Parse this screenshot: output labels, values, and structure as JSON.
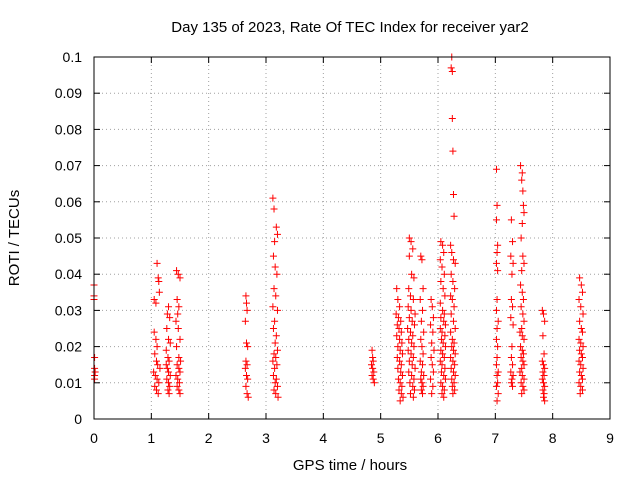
{
  "chart_data": {
    "type": "scatter",
    "title": "Day 135 of 2023, Rate Of TEC Index for receiver yar2",
    "xlabel": "GPS time / hours",
    "ylabel": "ROTI / TECUs",
    "xlim": [
      0,
      9
    ],
    "ylim": [
      0,
      0.1
    ],
    "x_ticks": [
      "0",
      "1",
      "2",
      "3",
      "4",
      "5",
      "6",
      "7",
      "8",
      "9"
    ],
    "y_ticks": [
      "0",
      "0.01",
      "0.02",
      "0.03",
      "0.04",
      "0.05",
      "0.06",
      "0.07",
      "0.08",
      "0.09",
      "0.1"
    ],
    "grid": true,
    "marker": "+",
    "color": "#ff0000",
    "points": [
      [
        0.0,
        0.037
      ],
      [
        0.0,
        0.033
      ],
      [
        0.0,
        0.034
      ],
      [
        0.01,
        0.017
      ],
      [
        0.01,
        0.014
      ],
      [
        0.01,
        0.012
      ],
      [
        0.01,
        0.011
      ],
      [
        0.02,
        0.013
      ],
      [
        1.05,
        0.033
      ],
      [
        1.08,
        0.032
      ],
      [
        1.1,
        0.043
      ],
      [
        1.12,
        0.039
      ],
      [
        1.13,
        0.038
      ],
      [
        1.14,
        0.035
      ],
      [
        1.05,
        0.024
      ],
      [
        1.08,
        0.022
      ],
      [
        1.1,
        0.02
      ],
      [
        1.06,
        0.018
      ],
      [
        1.09,
        0.016
      ],
      [
        1.11,
        0.015
      ],
      [
        1.04,
        0.013
      ],
      [
        1.07,
        0.012
      ],
      [
        1.1,
        0.011
      ],
      [
        1.13,
        0.01
      ],
      [
        1.06,
        0.009
      ],
      [
        1.09,
        0.008
      ],
      [
        1.12,
        0.007
      ],
      [
        1.15,
        0.014
      ],
      [
        1.28,
        0.029
      ],
      [
        1.3,
        0.031
      ],
      [
        1.32,
        0.028
      ],
      [
        1.27,
        0.025
      ],
      [
        1.3,
        0.022
      ],
      [
        1.33,
        0.021
      ],
      [
        1.26,
        0.019
      ],
      [
        1.29,
        0.017
      ],
      [
        1.31,
        0.016
      ],
      [
        1.28,
        0.014
      ],
      [
        1.3,
        0.013
      ],
      [
        1.33,
        0.012
      ],
      [
        1.27,
        0.011
      ],
      [
        1.3,
        0.01
      ],
      [
        1.32,
        0.009
      ],
      [
        1.29,
        0.008
      ],
      [
        1.31,
        0.007
      ],
      [
        1.26,
        0.015
      ],
      [
        1.44,
        0.041
      ],
      [
        1.47,
        0.04
      ],
      [
        1.5,
        0.039
      ],
      [
        1.45,
        0.033
      ],
      [
        1.48,
        0.031
      ],
      [
        1.46,
        0.029
      ],
      [
        1.43,
        0.027
      ],
      [
        1.47,
        0.025
      ],
      [
        1.5,
        0.022
      ],
      [
        1.44,
        0.02
      ],
      [
        1.48,
        0.017
      ],
      [
        1.51,
        0.016
      ],
      [
        1.45,
        0.015
      ],
      [
        1.48,
        0.014
      ],
      [
        1.5,
        0.013
      ],
      [
        1.43,
        0.012
      ],
      [
        1.46,
        0.011
      ],
      [
        1.49,
        0.01
      ],
      [
        1.45,
        0.009
      ],
      [
        1.48,
        0.008
      ],
      [
        1.5,
        0.007
      ],
      [
        2.65,
        0.034
      ],
      [
        2.66,
        0.032
      ],
      [
        2.67,
        0.03
      ],
      [
        2.64,
        0.027
      ],
      [
        2.66,
        0.021
      ],
      [
        2.68,
        0.02
      ],
      [
        2.65,
        0.016
      ],
      [
        2.67,
        0.015
      ],
      [
        2.64,
        0.014
      ],
      [
        2.66,
        0.012
      ],
      [
        2.68,
        0.011
      ],
      [
        2.65,
        0.009
      ],
      [
        2.67,
        0.007
      ],
      [
        2.69,
        0.006
      ],
      [
        3.12,
        0.061
      ],
      [
        3.14,
        0.058
      ],
      [
        3.18,
        0.053
      ],
      [
        3.2,
        0.051
      ],
      [
        3.15,
        0.049
      ],
      [
        3.13,
        0.045
      ],
      [
        3.16,
        0.042
      ],
      [
        3.19,
        0.04
      ],
      [
        3.14,
        0.036
      ],
      [
        3.17,
        0.034
      ],
      [
        3.12,
        0.031
      ],
      [
        3.2,
        0.03
      ],
      [
        3.15,
        0.027
      ],
      [
        3.13,
        0.025
      ],
      [
        3.18,
        0.023
      ],
      [
        3.16,
        0.021
      ],
      [
        3.2,
        0.019
      ],
      [
        3.14,
        0.018
      ],
      [
        3.17,
        0.017
      ],
      [
        3.12,
        0.016
      ],
      [
        3.19,
        0.015
      ],
      [
        3.15,
        0.014
      ],
      [
        3.13,
        0.012
      ],
      [
        3.18,
        0.011
      ],
      [
        3.16,
        0.01
      ],
      [
        3.2,
        0.009
      ],
      [
        3.14,
        0.008
      ],
      [
        3.17,
        0.007
      ],
      [
        3.21,
        0.006
      ],
      [
        4.85,
        0.019
      ],
      [
        4.86,
        0.017
      ],
      [
        4.87,
        0.016
      ],
      [
        4.84,
        0.015
      ],
      [
        4.86,
        0.014
      ],
      [
        4.88,
        0.013
      ],
      [
        4.85,
        0.012
      ],
      [
        4.87,
        0.011
      ],
      [
        4.89,
        0.01
      ],
      [
        5.28,
        0.036
      ],
      [
        5.3,
        0.033
      ],
      [
        5.33,
        0.031
      ],
      [
        5.27,
        0.029
      ],
      [
        5.31,
        0.028
      ],
      [
        5.35,
        0.027
      ],
      [
        5.29,
        0.026
      ],
      [
        5.32,
        0.025
      ],
      [
        5.36,
        0.024
      ],
      [
        5.28,
        0.023
      ],
      [
        5.33,
        0.022
      ],
      [
        5.37,
        0.021
      ],
      [
        5.3,
        0.02
      ],
      [
        5.34,
        0.019
      ],
      [
        5.38,
        0.018
      ],
      [
        5.29,
        0.017
      ],
      [
        5.33,
        0.016
      ],
      [
        5.36,
        0.015
      ],
      [
        5.3,
        0.014
      ],
      [
        5.35,
        0.013
      ],
      [
        5.38,
        0.012
      ],
      [
        5.31,
        0.011
      ],
      [
        5.34,
        0.01
      ],
      [
        5.37,
        0.009
      ],
      [
        5.32,
        0.008
      ],
      [
        5.36,
        0.007
      ],
      [
        5.39,
        0.006
      ],
      [
        5.34,
        0.005
      ],
      [
        5.5,
        0.05
      ],
      [
        5.53,
        0.049
      ],
      [
        5.56,
        0.047
      ],
      [
        5.5,
        0.045
      ],
      [
        5.54,
        0.04
      ],
      [
        5.58,
        0.039
      ],
      [
        5.49,
        0.036
      ],
      [
        5.52,
        0.034
      ],
      [
        5.57,
        0.033
      ],
      [
        5.48,
        0.031
      ],
      [
        5.53,
        0.03
      ],
      [
        5.6,
        0.029
      ],
      [
        5.5,
        0.028
      ],
      [
        5.55,
        0.027
      ],
      [
        5.59,
        0.026
      ],
      [
        5.47,
        0.025
      ],
      [
        5.52,
        0.024
      ],
      [
        5.56,
        0.023
      ],
      [
        5.49,
        0.022
      ],
      [
        5.54,
        0.021
      ],
      [
        5.58,
        0.02
      ],
      [
        5.48,
        0.019
      ],
      [
        5.53,
        0.018
      ],
      [
        5.57,
        0.017
      ],
      [
        5.5,
        0.016
      ],
      [
        5.55,
        0.015
      ],
      [
        5.6,
        0.014
      ],
      [
        5.49,
        0.013
      ],
      [
        5.54,
        0.012
      ],
      [
        5.58,
        0.011
      ],
      [
        5.51,
        0.01
      ],
      [
        5.56,
        0.009
      ],
      [
        5.59,
        0.008
      ],
      [
        5.52,
        0.007
      ],
      [
        5.57,
        0.006
      ],
      [
        5.7,
        0.045
      ],
      [
        5.72,
        0.044
      ],
      [
        5.74,
        0.036
      ],
      [
        5.69,
        0.033
      ],
      [
        5.73,
        0.03
      ],
      [
        5.71,
        0.027
      ],
      [
        5.75,
        0.024
      ],
      [
        5.7,
        0.022
      ],
      [
        5.72,
        0.02
      ],
      [
        5.74,
        0.018
      ],
      [
        5.69,
        0.016
      ],
      [
        5.73,
        0.015
      ],
      [
        5.71,
        0.013
      ],
      [
        5.75,
        0.012
      ],
      [
        5.7,
        0.011
      ],
      [
        5.72,
        0.01
      ],
      [
        5.74,
        0.009
      ],
      [
        5.71,
        0.008
      ],
      [
        5.73,
        0.007
      ],
      [
        5.88,
        0.033
      ],
      [
        5.9,
        0.031
      ],
      [
        5.92,
        0.028
      ],
      [
        5.87,
        0.026
      ],
      [
        5.91,
        0.024
      ],
      [
        5.89,
        0.021
      ],
      [
        5.93,
        0.019
      ],
      [
        5.88,
        0.017
      ],
      [
        5.9,
        0.015
      ],
      [
        5.92,
        0.013
      ],
      [
        5.87,
        0.011
      ],
      [
        5.91,
        0.009
      ],
      [
        5.89,
        0.007
      ],
      [
        6.05,
        0.049
      ],
      [
        6.08,
        0.048
      ],
      [
        6.1,
        0.046
      ],
      [
        6.04,
        0.044
      ],
      [
        6.07,
        0.042
      ],
      [
        6.11,
        0.04
      ],
      [
        6.05,
        0.038
      ],
      [
        6.09,
        0.036
      ],
      [
        6.12,
        0.034
      ],
      [
        6.04,
        0.032
      ],
      [
        6.08,
        0.03
      ],
      [
        6.11,
        0.029
      ],
      [
        6.05,
        0.028
      ],
      [
        6.1,
        0.027
      ],
      [
        6.13,
        0.026
      ],
      [
        6.04,
        0.025
      ],
      [
        6.07,
        0.024
      ],
      [
        6.12,
        0.023
      ],
      [
        6.06,
        0.022
      ],
      [
        6.09,
        0.021
      ],
      [
        6.13,
        0.02
      ],
      [
        6.05,
        0.019
      ],
      [
        6.08,
        0.018
      ],
      [
        6.11,
        0.017
      ],
      [
        6.04,
        0.016
      ],
      [
        6.07,
        0.015
      ],
      [
        6.12,
        0.014
      ],
      [
        6.06,
        0.013
      ],
      [
        6.1,
        0.012
      ],
      [
        6.13,
        0.011
      ],
      [
        6.05,
        0.01
      ],
      [
        6.08,
        0.009
      ],
      [
        6.11,
        0.008
      ],
      [
        6.07,
        0.007
      ],
      [
        6.1,
        0.006
      ],
      [
        6.24,
        0.1
      ],
      [
        6.23,
        0.097
      ],
      [
        6.25,
        0.096
      ],
      [
        6.25,
        0.083
      ],
      [
        6.26,
        0.074
      ],
      [
        6.27,
        0.062
      ],
      [
        6.28,
        0.056
      ],
      [
        6.22,
        0.048
      ],
      [
        6.24,
        0.046
      ],
      [
        6.27,
        0.044
      ],
      [
        6.3,
        0.043
      ],
      [
        6.23,
        0.04
      ],
      [
        6.26,
        0.038
      ],
      [
        6.29,
        0.036
      ],
      [
        6.22,
        0.034
      ],
      [
        6.25,
        0.033
      ],
      [
        6.28,
        0.031
      ],
      [
        6.23,
        0.029
      ],
      [
        6.27,
        0.027
      ],
      [
        6.3,
        0.025
      ],
      [
        6.22,
        0.024
      ],
      [
        6.25,
        0.022
      ],
      [
        6.28,
        0.021
      ],
      [
        6.24,
        0.02
      ],
      [
        6.27,
        0.019
      ],
      [
        6.3,
        0.018
      ],
      [
        6.22,
        0.017
      ],
      [
        6.26,
        0.016
      ],
      [
        6.29,
        0.015
      ],
      [
        6.23,
        0.014
      ],
      [
        6.27,
        0.013
      ],
      [
        6.3,
        0.012
      ],
      [
        6.24,
        0.011
      ],
      [
        6.28,
        0.01
      ],
      [
        6.25,
        0.009
      ],
      [
        6.29,
        0.008
      ],
      [
        6.26,
        0.007
      ],
      [
        7.02,
        0.069
      ],
      [
        7.03,
        0.059
      ],
      [
        7.02,
        0.055
      ],
      [
        7.04,
        0.048
      ],
      [
        7.03,
        0.046
      ],
      [
        7.02,
        0.043
      ],
      [
        7.04,
        0.041
      ],
      [
        7.03,
        0.033
      ],
      [
        7.02,
        0.03
      ],
      [
        7.05,
        0.027
      ],
      [
        7.03,
        0.025
      ],
      [
        7.02,
        0.022
      ],
      [
        7.04,
        0.02
      ],
      [
        7.03,
        0.017
      ],
      [
        7.02,
        0.015
      ],
      [
        7.05,
        0.013
      ],
      [
        7.03,
        0.012
      ],
      [
        7.04,
        0.01
      ],
      [
        7.02,
        0.009
      ],
      [
        7.05,
        0.007
      ],
      [
        7.03,
        0.005
      ],
      [
        7.28,
        0.055
      ],
      [
        7.3,
        0.049
      ],
      [
        7.27,
        0.045
      ],
      [
        7.31,
        0.043
      ],
      [
        7.29,
        0.04
      ],
      [
        7.28,
        0.033
      ],
      [
        7.3,
        0.031
      ],
      [
        7.27,
        0.028
      ],
      [
        7.31,
        0.026
      ],
      [
        7.29,
        0.02
      ],
      [
        7.28,
        0.017
      ],
      [
        7.3,
        0.015
      ],
      [
        7.27,
        0.013
      ],
      [
        7.31,
        0.012
      ],
      [
        7.29,
        0.011
      ],
      [
        7.28,
        0.01
      ],
      [
        7.3,
        0.009
      ],
      [
        7.44,
        0.07
      ],
      [
        7.47,
        0.068
      ],
      [
        7.46,
        0.066
      ],
      [
        7.48,
        0.063
      ],
      [
        7.49,
        0.059
      ],
      [
        7.5,
        0.057
      ],
      [
        7.47,
        0.054
      ],
      [
        7.45,
        0.05
      ],
      [
        7.48,
        0.045
      ],
      [
        7.5,
        0.043
      ],
      [
        7.46,
        0.041
      ],
      [
        7.44,
        0.037
      ],
      [
        7.47,
        0.035
      ],
      [
        7.49,
        0.033
      ],
      [
        7.45,
        0.031
      ],
      [
        7.48,
        0.029
      ],
      [
        7.5,
        0.027
      ],
      [
        7.46,
        0.025
      ],
      [
        7.43,
        0.024
      ],
      [
        7.47,
        0.023
      ],
      [
        7.5,
        0.022
      ],
      [
        7.44,
        0.02
      ],
      [
        7.47,
        0.019
      ],
      [
        7.49,
        0.018
      ],
      [
        7.45,
        0.017
      ],
      [
        7.48,
        0.016
      ],
      [
        7.5,
        0.015
      ],
      [
        7.46,
        0.014
      ],
      [
        7.43,
        0.013
      ],
      [
        7.47,
        0.012
      ],
      [
        7.5,
        0.011
      ],
      [
        7.45,
        0.01
      ],
      [
        7.48,
        0.009
      ],
      [
        7.5,
        0.008
      ],
      [
        7.46,
        0.007
      ],
      [
        7.82,
        0.03
      ],
      [
        7.84,
        0.029
      ],
      [
        7.86,
        0.027
      ],
      [
        7.83,
        0.023
      ],
      [
        7.85,
        0.018
      ],
      [
        7.82,
        0.016
      ],
      [
        7.84,
        0.015
      ],
      [
        7.86,
        0.014
      ],
      [
        7.83,
        0.013
      ],
      [
        7.85,
        0.012
      ],
      [
        7.82,
        0.011
      ],
      [
        7.84,
        0.01
      ],
      [
        7.86,
        0.009
      ],
      [
        7.83,
        0.008
      ],
      [
        7.85,
        0.007
      ],
      [
        7.84,
        0.006
      ],
      [
        7.86,
        0.005
      ],
      [
        8.47,
        0.039
      ],
      [
        8.5,
        0.037
      ],
      [
        8.52,
        0.035
      ],
      [
        8.46,
        0.033
      ],
      [
        8.49,
        0.031
      ],
      [
        8.53,
        0.029
      ],
      [
        8.47,
        0.027
      ],
      [
        8.5,
        0.025
      ],
      [
        8.52,
        0.024
      ],
      [
        8.46,
        0.022
      ],
      [
        8.49,
        0.021
      ],
      [
        8.53,
        0.02
      ],
      [
        8.47,
        0.019
      ],
      [
        8.5,
        0.018
      ],
      [
        8.52,
        0.017
      ],
      [
        8.46,
        0.016
      ],
      [
        8.49,
        0.015
      ],
      [
        8.53,
        0.014
      ],
      [
        8.47,
        0.013
      ],
      [
        8.5,
        0.012
      ],
      [
        8.52,
        0.011
      ],
      [
        8.46,
        0.01
      ],
      [
        8.49,
        0.009
      ],
      [
        8.52,
        0.008
      ],
      [
        8.48,
        0.007
      ]
    ]
  }
}
